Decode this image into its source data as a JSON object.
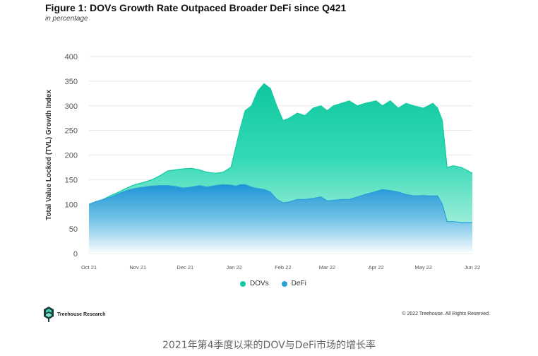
{
  "title": "Figure 1: DOVs Growth Rate Outpaced Broader DeFi since Q421",
  "subtitle": "in percentage",
  "footer": {
    "brand": "Treehouse Research",
    "copyright": "© 2022 Treehouse. All Rights Reserved."
  },
  "caption": "2021年第4季度以来的DOV与DeFi市场的增长率",
  "colors": {
    "dovs": "#12c9a2",
    "defi": "#2a9fd8",
    "grid": "#e6e6e6",
    "axis_text": "#555555"
  },
  "chart_data": {
    "type": "area",
    "title": "Figure 1: DOVs Growth Rate Outpaced Broader DeFi since Q421",
    "subtitle": "in percentage",
    "ylabel": "Total Value Locked (TVL) Growth Index",
    "xlabel": "",
    "ylim": [
      0,
      400
    ],
    "yticks": [
      0,
      50,
      100,
      150,
      200,
      250,
      300,
      350,
      400
    ],
    "xlim": [
      "2021-10-01",
      "2022-06-01"
    ],
    "xticks": [
      {
        "date": "2021-10-01",
        "label": "Oct 21"
      },
      {
        "date": "2021-11-01",
        "label": "Nov 21"
      },
      {
        "date": "2021-12-01",
        "label": "Dec 21"
      },
      {
        "date": "2022-01-01",
        "label": "Jan 22"
      },
      {
        "date": "2022-02-01",
        "label": "Feb 22"
      },
      {
        "date": "2022-03-01",
        "label": "Mar 22"
      },
      {
        "date": "2022-04-01",
        "label": "Apr 22"
      },
      {
        "date": "2022-05-01",
        "label": "May 22"
      },
      {
        "date": "2022-06-01",
        "label": "Jun 22"
      }
    ],
    "grid": true,
    "legend": "bottom-center",
    "series": [
      {
        "name": "DOVs",
        "color": "#12c9a2",
        "x": [
          "2021-10-01",
          "2021-10-05",
          "2021-10-10",
          "2021-10-15",
          "2021-10-20",
          "2021-10-25",
          "2021-10-30",
          "2021-11-05",
          "2021-11-10",
          "2021-11-15",
          "2021-11-20",
          "2021-11-25",
          "2021-11-30",
          "2021-12-05",
          "2021-12-10",
          "2021-12-15",
          "2021-12-20",
          "2021-12-25",
          "2021-12-30",
          "2022-01-02",
          "2022-01-05",
          "2022-01-08",
          "2022-01-12",
          "2022-01-16",
          "2022-01-20",
          "2022-01-24",
          "2022-01-28",
          "2022-02-01",
          "2022-02-05",
          "2022-02-10",
          "2022-02-15",
          "2022-02-20",
          "2022-02-25",
          "2022-03-01",
          "2022-03-05",
          "2022-03-10",
          "2022-03-15",
          "2022-03-20",
          "2022-03-25",
          "2022-04-01",
          "2022-04-05",
          "2022-04-10",
          "2022-04-15",
          "2022-04-20",
          "2022-04-25",
          "2022-05-01",
          "2022-05-04",
          "2022-05-07",
          "2022-05-10",
          "2022-05-13",
          "2022-05-16",
          "2022-05-20",
          "2022-05-25",
          "2022-06-01"
        ],
        "values": [
          100,
          105,
          110,
          118,
          125,
          133,
          140,
          145,
          150,
          158,
          168,
          170,
          172,
          173,
          170,
          165,
          163,
          165,
          175,
          215,
          255,
          290,
          300,
          330,
          345,
          335,
          300,
          270,
          275,
          285,
          280,
          295,
          300,
          290,
          300,
          305,
          310,
          300,
          305,
          310,
          300,
          310,
          295,
          305,
          300,
          295,
          300,
          305,
          295,
          270,
          175,
          178,
          175,
          163
        ]
      },
      {
        "name": "DeFi",
        "color": "#2a9fd8",
        "x": [
          "2021-10-01",
          "2021-10-05",
          "2021-10-10",
          "2021-10-15",
          "2021-10-20",
          "2021-10-25",
          "2021-10-30",
          "2021-11-05",
          "2021-11-10",
          "2021-11-15",
          "2021-11-20",
          "2021-11-25",
          "2021-11-30",
          "2021-12-05",
          "2021-12-10",
          "2021-12-15",
          "2021-12-20",
          "2021-12-25",
          "2021-12-30",
          "2022-01-02",
          "2022-01-05",
          "2022-01-08",
          "2022-01-12",
          "2022-01-16",
          "2022-01-20",
          "2022-01-24",
          "2022-01-28",
          "2022-02-01",
          "2022-02-05",
          "2022-02-10",
          "2022-02-15",
          "2022-02-20",
          "2022-02-25",
          "2022-03-01",
          "2022-03-05",
          "2022-03-10",
          "2022-03-15",
          "2022-03-20",
          "2022-03-25",
          "2022-04-01",
          "2022-04-05",
          "2022-04-10",
          "2022-04-15",
          "2022-04-20",
          "2022-04-25",
          "2022-05-01",
          "2022-05-04",
          "2022-05-07",
          "2022-05-10",
          "2022-05-13",
          "2022-05-16",
          "2022-05-20",
          "2022-05-25",
          "2022-06-01"
        ],
        "values": [
          100,
          105,
          110,
          115,
          122,
          128,
          132,
          135,
          137,
          138,
          138,
          136,
          133,
          135,
          138,
          135,
          138,
          140,
          139,
          137,
          140,
          140,
          135,
          132,
          130,
          125,
          110,
          103,
          105,
          110,
          110,
          112,
          115,
          107,
          108,
          110,
          110,
          115,
          120,
          126,
          130,
          128,
          125,
          120,
          117,
          118,
          117,
          117,
          117,
          100,
          65,
          65,
          63,
          63
        ]
      }
    ]
  }
}
